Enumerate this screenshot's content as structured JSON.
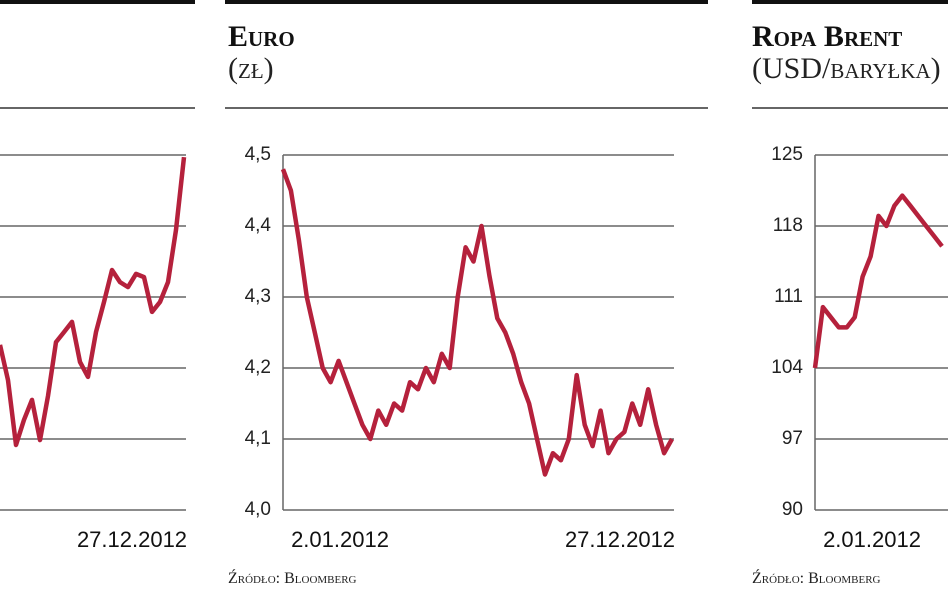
{
  "chart_data": [
    {
      "type": "line",
      "show_ytick_labels": false,
      "categories": [
        null,
        null,
        null,
        null,
        null,
        null,
        null,
        null,
        null,
        null,
        null,
        null,
        null,
        null,
        null,
        null,
        null,
        null,
        null,
        null,
        null,
        null,
        null,
        "27.12.2012"
      ],
      "series": [
        {
          "color": "#b5213c",
          "values": [
            46.5,
            36.6,
            18.3,
            25.4,
            31.0,
            19.7,
            32.1,
            47.3,
            50.1,
            53.0,
            41.7,
            37.5,
            50.1,
            58.6,
            67.6,
            64.2,
            62.8,
            66.5,
            65.6,
            55.8,
            58.6,
            64.2,
            78.9,
            99.4
          ]
        }
      ],
      "ylim": [
        0,
        100
      ],
      "yticks": [
        0,
        20,
        40,
        60,
        80,
        100
      ],
      "grid": true
    },
    {
      "type": "line",
      "title": "Euro",
      "subtitle": "(zł)",
      "source": "Źródło: Bloomberg",
      "show_ytick_labels": true,
      "categories": [
        "2.01.2012",
        null,
        null,
        null,
        null,
        null,
        null,
        null,
        null,
        null,
        null,
        null,
        null,
        null,
        null,
        null,
        null,
        null,
        null,
        null,
        null,
        null,
        null,
        null,
        null,
        null,
        null,
        null,
        null,
        null,
        null,
        null,
        null,
        null,
        null,
        null,
        null,
        null,
        null,
        null,
        null,
        null,
        null,
        null,
        null,
        null,
        null,
        null,
        null,
        "27.12.2012"
      ],
      "series": [
        {
          "color": "#b5213c",
          "values": [
            4.48,
            4.45,
            4.38,
            4.3,
            4.25,
            4.2,
            4.18,
            4.21,
            4.18,
            4.15,
            4.12,
            4.1,
            4.14,
            4.12,
            4.15,
            4.14,
            4.18,
            4.17,
            4.2,
            4.18,
            4.22,
            4.2,
            4.3,
            4.37,
            4.35,
            4.4,
            4.33,
            4.27,
            4.25,
            4.22,
            4.18,
            4.15,
            4.1,
            4.05,
            4.08,
            4.07,
            4.1,
            4.19,
            4.12,
            4.09,
            4.14,
            4.08,
            4.1,
            4.11,
            4.15,
            4.12,
            4.17,
            4.12,
            4.08,
            4.1
          ]
        }
      ],
      "ylim": [
        4.0,
        4.5
      ],
      "yticks": [
        {
          "value": 4.0,
          "label": "4,0"
        },
        {
          "value": 4.1,
          "label": "4,1"
        },
        {
          "value": 4.2,
          "label": "4,2"
        },
        {
          "value": 4.3,
          "label": "4,3"
        },
        {
          "value": 4.4,
          "label": "4,4"
        },
        {
          "value": 4.5,
          "label": "4,5"
        }
      ],
      "grid": true
    },
    {
      "type": "line",
      "title": "Ropa Brent",
      "subtitle": "(USD/baryłka)",
      "source": "Źródło: Bloomberg",
      "show_ytick_labels": true,
      "categories": [
        "2.01.2012",
        null,
        null,
        null,
        null,
        null,
        null,
        null,
        null,
        null,
        null,
        null,
        null,
        null,
        null,
        null,
        null
      ],
      "series": [
        {
          "color": "#b5213c",
          "values": [
            104,
            110,
            109,
            108,
            108,
            109,
            113,
            115,
            119,
            118,
            120,
            121,
            120,
            119,
            118,
            117,
            116
          ]
        }
      ],
      "ylim": [
        90,
        125
      ],
      "yticks": [
        90,
        97,
        104,
        111,
        118,
        125
      ],
      "grid": true
    }
  ]
}
